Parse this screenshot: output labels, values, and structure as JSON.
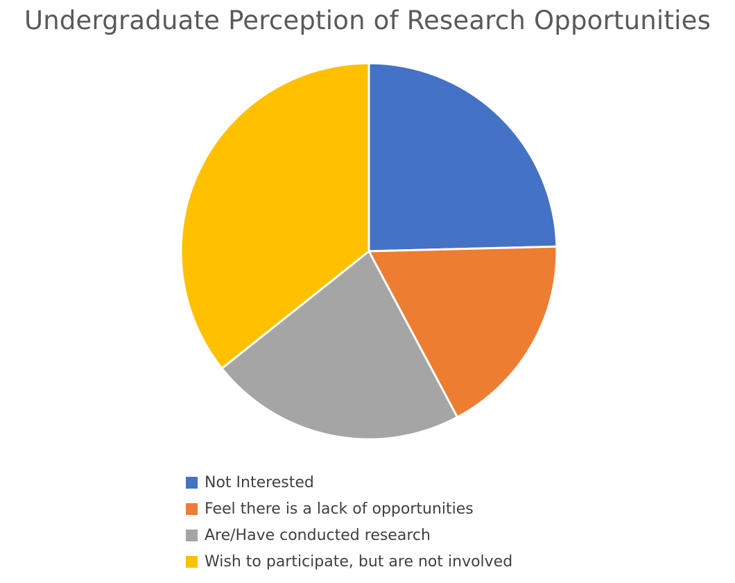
{
  "chart_data": {
    "type": "pie",
    "title": "Undergraduate Perception of Research Opportunities",
    "legend_position": "bottom",
    "start_angle_deg": 0,
    "direction": "clockwise",
    "slices": [
      {
        "label": "Not Interested",
        "value": 24.6,
        "color": "#4472C4"
      },
      {
        "label": "Feel there is a lack of opportunities",
        "value": 17.6,
        "color": "#ED7D31"
      },
      {
        "label": "Are/Have conducted research",
        "value": 22.1,
        "color": "#A5A5A5"
      },
      {
        "label": "Wish to participate, but are not involved",
        "value": 35.7,
        "color": "#FFC000"
      }
    ]
  }
}
